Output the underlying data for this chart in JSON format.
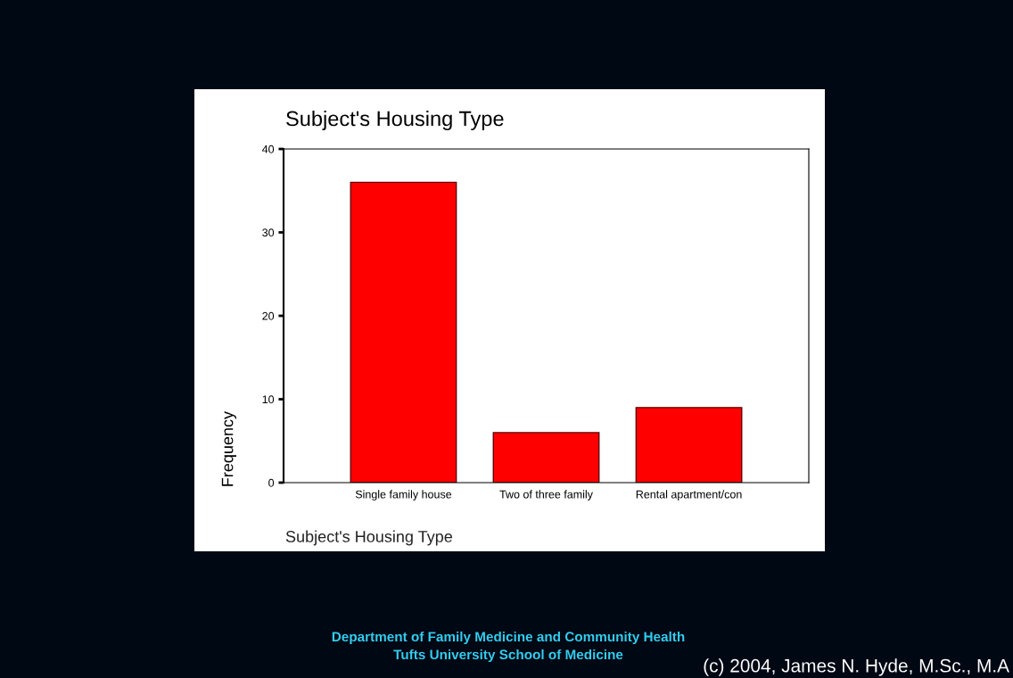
{
  "chart_data": {
    "type": "bar",
    "title": "Subject's Housing Type",
    "xlabel": "Subject's Housing Type",
    "ylabel": "Frequency",
    "categories": [
      "Single family house",
      "Two of three family",
      "Rental apartment/con"
    ],
    "values": [
      36,
      6,
      9
    ],
    "color": "#ff0000",
    "ylim": [
      0,
      40
    ],
    "yticks": [
      0,
      10,
      20,
      30,
      40
    ],
    "grid": false,
    "legend": false,
    "annotations": [
      "Department of Family Medicine and Community Health",
      "Tufts University School of Medicine",
      "(c) 2004, James N. Hyde, M.Sc., M.A"
    ]
  }
}
